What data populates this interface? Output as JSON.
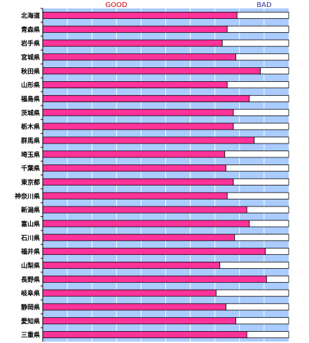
{
  "chart_data": {
    "type": "bar",
    "orientation": "horizontal",
    "stacked": true,
    "scale_labels": {
      "left": "GOOD",
      "right": "BAD",
      "left_color": "#cc0000",
      "right_color": "#333399"
    },
    "categories": [
      "北海道",
      "青森県",
      "岩手県",
      "宮城県",
      "秋田県",
      "山形県",
      "福島県",
      "茨城県",
      "栃木県",
      "群馬県",
      "埼玉県",
      "千葉県",
      "東京都",
      "神奈川県",
      "新潟県",
      "富山県",
      "石川県",
      "福井県",
      "山梨県",
      "長野県",
      "岐阜県",
      "静岡県",
      "愛知県",
      "三重県"
    ],
    "values": [
      0.79,
      0.75,
      0.73,
      0.785,
      0.885,
      0.75,
      0.84,
      0.775,
      0.775,
      0.86,
      0.74,
      0.745,
      0.775,
      0.75,
      0.83,
      0.84,
      0.78,
      0.905,
      0.72,
      0.91,
      0.705,
      0.745,
      0.785,
      0.83
    ],
    "xlim": [
      0,
      1
    ],
    "series": [
      {
        "color": "#ff3399"
      },
      {
        "color": "#ffffff"
      }
    ],
    "background_color": "#aaccff",
    "grid": true,
    "legend": "none"
  }
}
